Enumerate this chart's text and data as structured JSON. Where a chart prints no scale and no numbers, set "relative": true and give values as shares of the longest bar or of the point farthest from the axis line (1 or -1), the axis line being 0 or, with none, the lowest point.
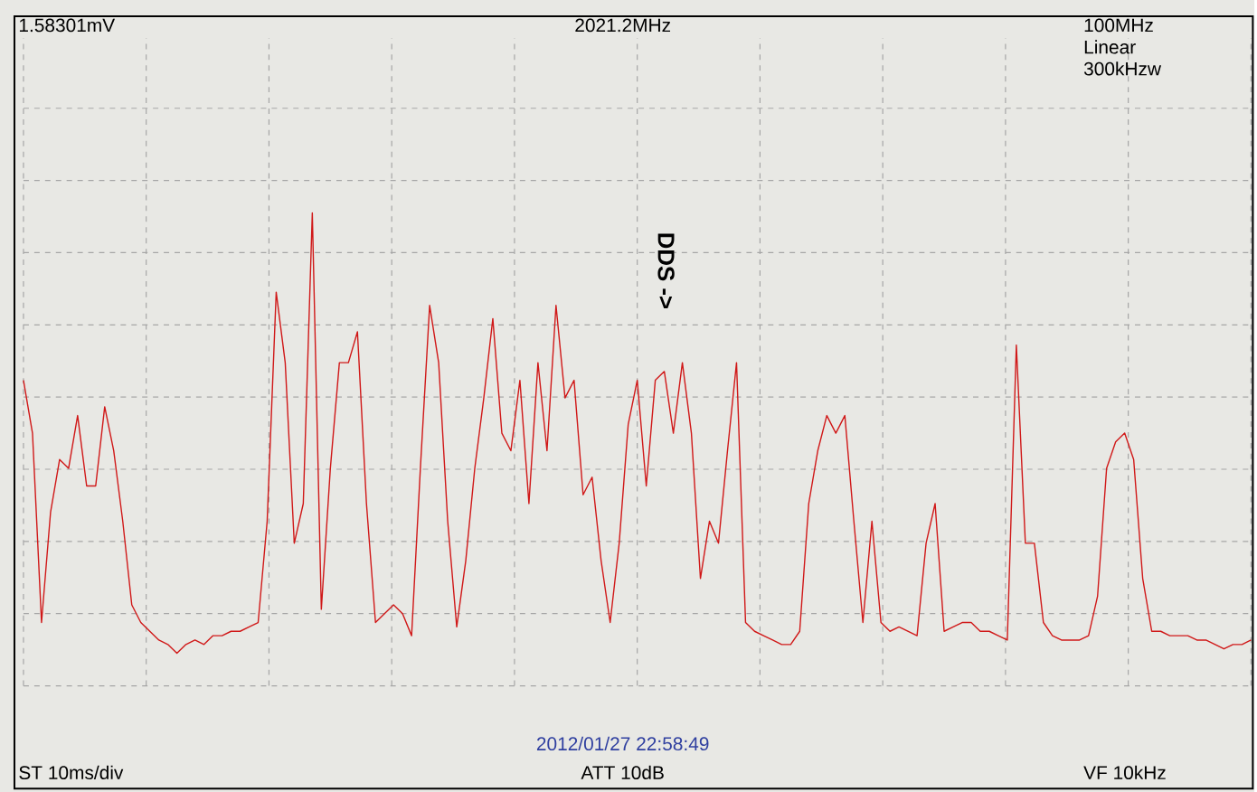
{
  "chart_data": {
    "type": "line",
    "relative": true,
    "grid": true,
    "tick_labels": false,
    "color": "#d01818",
    "categories": [
      null,
      null,
      null,
      null,
      null,
      null,
      null,
      null,
      null,
      null,
      null,
      null,
      null,
      null,
      null,
      null,
      null,
      null,
      null,
      null,
      null,
      null,
      null,
      null,
      null,
      null,
      null,
      null,
      null,
      null,
      null,
      null,
      null,
      null,
      null,
      null,
      null,
      null,
      null,
      null,
      null,
      null,
      null,
      null,
      null,
      null,
      null,
      null,
      null,
      null,
      null,
      null,
      null,
      null,
      null,
      null,
      null,
      null,
      null,
      null,
      null,
      null,
      null,
      null,
      null,
      null,
      null,
      null,
      null,
      null,
      null,
      null,
      null,
      null,
      null,
      null,
      null,
      null,
      null,
      null,
      null,
      null,
      null,
      null,
      null,
      null,
      null,
      null,
      null,
      null,
      null,
      null,
      null,
      null,
      null,
      null,
      null,
      null,
      null,
      null,
      null,
      null,
      null,
      null,
      null,
      null,
      null,
      null,
      null,
      null,
      null,
      null,
      null,
      null,
      null,
      null,
      null,
      null,
      null,
      null,
      null,
      null,
      null,
      null,
      null,
      null,
      null,
      null,
      null,
      null,
      null,
      null,
      null,
      null,
      null,
      null,
      null
    ],
    "values": [
      0.62,
      0.5,
      0.07,
      0.32,
      0.44,
      0.42,
      0.54,
      0.38,
      0.38,
      0.56,
      0.46,
      0.3,
      0.11,
      0.07,
      0.05,
      0.03,
      0.02,
      0.0,
      0.02,
      0.03,
      0.02,
      0.04,
      0.04,
      0.05,
      0.05,
      0.06,
      0.07,
      0.3,
      0.82,
      0.66,
      0.25,
      0.34,
      1.0,
      0.1,
      0.42,
      0.66,
      0.66,
      0.73,
      0.34,
      0.07,
      0.09,
      0.11,
      0.09,
      0.04,
      0.43,
      0.79,
      0.66,
      0.3,
      0.06,
      0.21,
      0.42,
      0.58,
      0.76,
      0.5,
      0.46,
      0.62,
      0.34,
      0.66,
      0.46,
      0.79,
      0.58,
      0.62,
      0.36,
      0.4,
      0.21,
      0.07,
      0.25,
      0.52,
      0.62,
      0.38,
      0.62,
      0.64,
      0.5,
      0.66,
      0.5,
      0.17,
      0.3,
      0.25,
      0.46,
      0.66,
      0.07,
      0.05,
      0.04,
      0.03,
      0.02,
      0.02,
      0.05,
      0.34,
      0.46,
      0.54,
      0.5,
      0.54,
      0.3,
      0.07,
      0.3,
      0.07,
      0.05,
      0.06,
      0.05,
      0.04,
      0.25,
      0.34,
      0.05,
      0.06,
      0.07,
      0.07,
      0.05,
      0.05,
      0.04,
      0.03,
      0.7,
      0.25,
      0.25,
      0.07,
      0.04,
      0.03,
      0.03,
      0.03,
      0.04,
      0.13,
      0.42,
      0.48,
      0.5,
      0.44,
      0.17,
      0.05,
      0.05,
      0.04,
      0.04,
      0.04,
      0.03,
      0.03,
      0.02,
      0.01,
      0.02,
      0.02,
      0.03
    ],
    "annotations": [
      "1.58301mV",
      "2021.2MHz",
      "100MHz",
      "Linear",
      "300kHzw",
      "2012/01/27 22:58:49",
      "ST 10ms/div",
      "ATT 10dB",
      "VF 10kHz",
      "DDS ->"
    ]
  }
}
